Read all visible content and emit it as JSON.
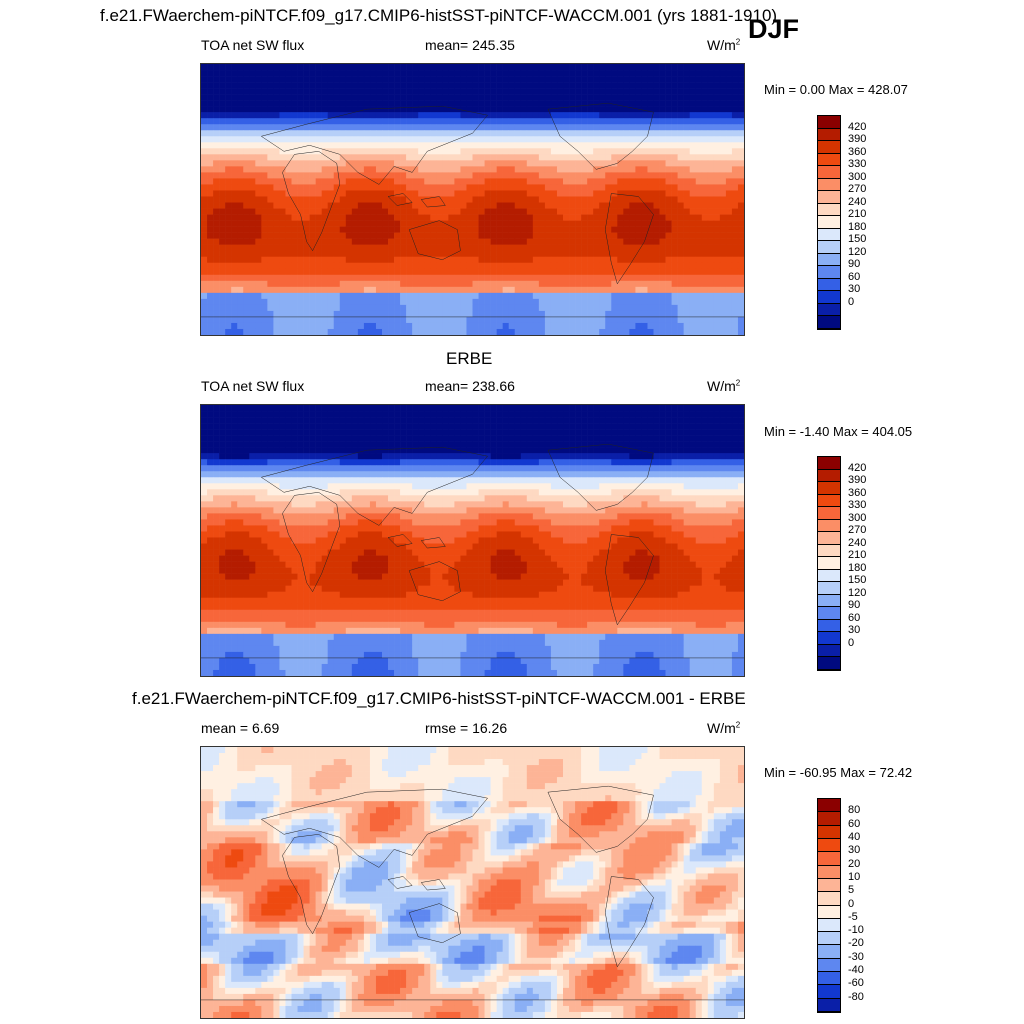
{
  "season": "DJF",
  "units_base": "W/m",
  "units_exp": "2",
  "panels": [
    {
      "title": "f.e21.FWaerchem-piNTCF.f09_g17.CMIP6-histSST-piNTCF-WACCM.001 (yrs 1881-1910)",
      "left_label": "TOA net SW flux",
      "center_label": "mean= 245.35",
      "minmax": "Min =   0.00 Max = 428.07",
      "field": "model",
      "colorbar": {
        "labels": [
          "420",
          "390",
          "360",
          "330",
          "300",
          "270",
          "240",
          "210",
          "180",
          "150",
          "120",
          "90",
          "60",
          "30",
          "0"
        ],
        "colors": [
          "#8b0000",
          "#b41c00",
          "#d43400",
          "#ee4a10",
          "#f7663a",
          "#fb8e66",
          "#fdb496",
          "#fed9c2",
          "#fff0e2",
          "#dbe8fb",
          "#b6cff8",
          "#8aaff5",
          "#5e87f0",
          "#3460e6",
          "#1238d0",
          "#0a1fa8",
          "#000a80"
        ]
      }
    },
    {
      "title": "ERBE",
      "left_label": "TOA net SW flux",
      "center_label": "mean= 238.66",
      "minmax": "Min =  -1.40 Max = 404.05",
      "field": "obs",
      "colorbar": {
        "labels": [
          "420",
          "390",
          "360",
          "330",
          "300",
          "270",
          "240",
          "210",
          "180",
          "150",
          "120",
          "90",
          "60",
          "30",
          "0"
        ],
        "colors": [
          "#8b0000",
          "#b41c00",
          "#d43400",
          "#ee4a10",
          "#f7663a",
          "#fb8e66",
          "#fdb496",
          "#fed9c2",
          "#fff0e2",
          "#dbe8fb",
          "#b6cff8",
          "#8aaff5",
          "#5e87f0",
          "#3460e6",
          "#1238d0",
          "#0a1fa8",
          "#000a80"
        ]
      }
    },
    {
      "title": "f.e21.FWaerchem-piNTCF.f09_g17.CMIP6-histSST-piNTCF-WACCM.001 - ERBE",
      "left_label": "mean =   6.69",
      "center_label": "rmse =  16.26",
      "minmax": "Min = -60.95 Max =  72.42",
      "field": "diff",
      "colorbar": {
        "labels": [
          "80",
          "60",
          "40",
          "30",
          "20",
          "10",
          "5",
          "0",
          "-5",
          "-10",
          "-20",
          "-30",
          "-40",
          "-60",
          "-80"
        ],
        "colors": [
          "#8b0000",
          "#b41c00",
          "#d43400",
          "#ee4a10",
          "#f7663a",
          "#fb8e66",
          "#fdb496",
          "#fed9c2",
          "#fff0e2",
          "#dbe8fb",
          "#b6cff8",
          "#8aaff5",
          "#5e87f0",
          "#3460e6",
          "#1238d0",
          "#0a1fa8"
        ]
      }
    }
  ]
}
